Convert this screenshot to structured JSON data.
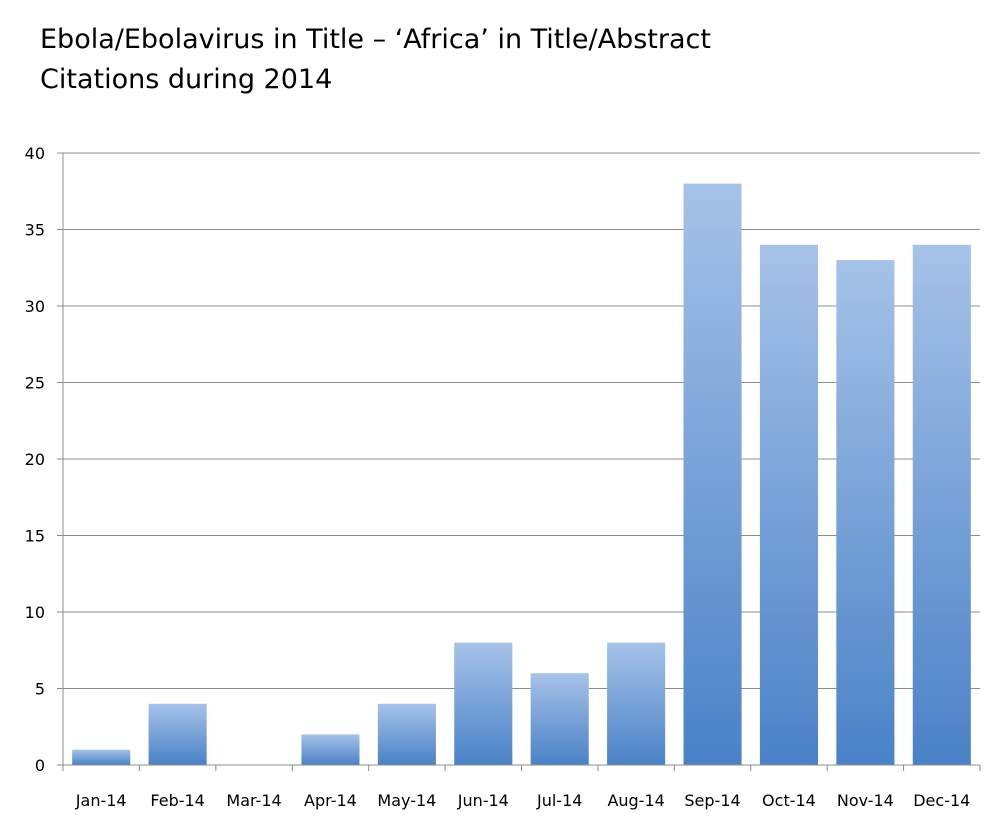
{
  "chart_data": {
    "type": "bar",
    "title_lines": [
      "Ebola/Ebolavirus in Title – ‘Africa’ in Title/Abstract",
      "Citations during 2014"
    ],
    "categories": [
      "Jan-14",
      "Feb-14",
      "Mar-14",
      "Apr-14",
      "May-14",
      "Jun-14",
      "Jul-14",
      "Aug-14",
      "Sep-14",
      "Oct-14",
      "Nov-14",
      "Dec-14"
    ],
    "values": [
      1,
      4,
      0,
      2,
      4,
      8,
      6,
      8,
      38,
      34,
      33,
      34
    ],
    "ylim": [
      0,
      40
    ],
    "yticks": [
      0,
      5,
      10,
      15,
      20,
      25,
      30,
      35,
      40
    ],
    "xlabel": "",
    "ylabel": "",
    "grid": true,
    "legend": "none",
    "bar_color_top": "#a6c2e8",
    "bar_color_bottom": "#4a82c7"
  }
}
